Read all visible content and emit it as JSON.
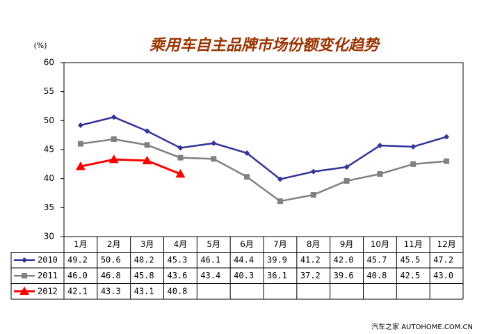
{
  "chart_data": {
    "type": "line",
    "title": "乘用车自主品牌市场份额变化趋势",
    "y_unit": "(%)",
    "categories": [
      "1月",
      "2月",
      "3月",
      "4月",
      "5月",
      "6月",
      "7月",
      "8月",
      "9月",
      "10月",
      "11月",
      "12月"
    ],
    "ylim": [
      30,
      60
    ],
    "yticks": [
      30,
      35,
      40,
      45,
      50,
      55,
      60
    ],
    "grid": false,
    "series": [
      {
        "name": "2010",
        "color": "#333399",
        "marker": "diamond",
        "values": [
          49.2,
          50.6,
          48.2,
          45.3,
          46.1,
          44.4,
          39.9,
          41.2,
          42,
          45.7,
          45.5,
          47.2
        ],
        "value_labels": [
          "49.2",
          "50.6",
          "48.2",
          "45.3",
          "46.1",
          "44.4",
          "39.9",
          "41.2",
          "42.0",
          "45.7",
          "45.5",
          "47.2"
        ]
      },
      {
        "name": "2011",
        "color": "#808080",
        "marker": "square",
        "values": [
          46,
          46.8,
          45.8,
          43.6,
          43.4,
          40.3,
          36.1,
          37.2,
          39.6,
          40.8,
          42.5,
          43
        ],
        "value_labels": [
          "46.0",
          "46.8",
          "45.8",
          "43.6",
          "43.4",
          "40.3",
          "36.1",
          "37.2",
          "39.6",
          "40.8",
          "42.5",
          "43.0"
        ]
      },
      {
        "name": "2012",
        "color": "#ff0000",
        "marker": "triangle",
        "values": [
          42.1,
          43.3,
          43.1,
          40.8,
          null,
          null,
          null,
          null,
          null,
          null,
          null,
          null
        ],
        "value_labels": [
          "42.1",
          "43.3",
          "43.1",
          "40.8",
          null,
          null,
          null,
          null,
          null,
          null,
          null,
          null
        ]
      }
    ],
    "watermark": "汽车之家 AUTOHOME.COM.CN"
  }
}
